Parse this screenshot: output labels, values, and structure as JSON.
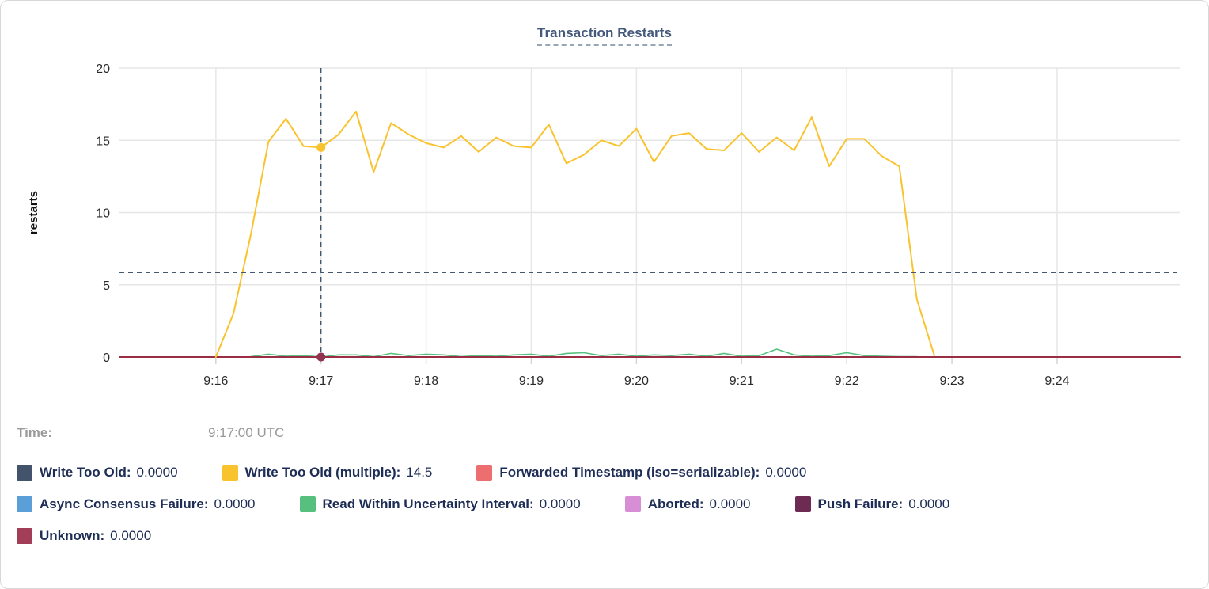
{
  "card": {
    "title": "Transaction Restarts"
  },
  "hover": {
    "label": "Time:",
    "value": "9:17:00 UTC"
  },
  "legend": {
    "rows": [
      [
        {
          "key": "write-too-old",
          "label": "Write Too Old:",
          "value": "0.0000",
          "color": "#43536c"
        },
        {
          "key": "write-too-old-multiple",
          "label": "Write Too Old (multiple):",
          "value": "14.5",
          "color": "#f9c32e"
        },
        {
          "key": "forwarded-timestamp",
          "label": "Forwarded Timestamp (iso=serializable):",
          "value": "0.0000",
          "color": "#ed6e6e"
        }
      ],
      [
        {
          "key": "async-consensus-failure",
          "label": "Async Consensus Failure:",
          "value": "0.0000",
          "color": "#5b9fd8"
        },
        {
          "key": "read-within-uncertainty-interval",
          "label": "Read Within Uncertainty Interval:",
          "value": "0.0000",
          "color": "#57c07f"
        },
        {
          "key": "aborted",
          "label": "Aborted:",
          "value": "0.0000",
          "color": "#d78ed5"
        },
        {
          "key": "push-failure",
          "label": "Push Failure:",
          "value": "0.0000",
          "color": "#6d2a52"
        }
      ],
      [
        {
          "key": "unknown",
          "label": "Unknown:",
          "value": "0.0000",
          "color": "#a23e55"
        }
      ]
    ]
  },
  "chart_data": {
    "type": "line",
    "title": "Transaction Restarts",
    "xlabel": "",
    "ylabel": "restarts",
    "ylim": [
      0,
      20
    ],
    "yticks": [
      0,
      5,
      10,
      15,
      20
    ],
    "x_base_time": "9:15:00",
    "x_domain_seconds": [
      5,
      610
    ],
    "xticks": [
      {
        "t": 60,
        "label": "9:16"
      },
      {
        "t": 120,
        "label": "9:17"
      },
      {
        "t": 180,
        "label": "9:18"
      },
      {
        "t": 240,
        "label": "9:19"
      },
      {
        "t": 300,
        "label": "9:20"
      },
      {
        "t": 360,
        "label": "9:21"
      },
      {
        "t": 420,
        "label": "9:22"
      },
      {
        "t": 480,
        "label": "9:23"
      },
      {
        "t": 540,
        "label": "9:24"
      }
    ],
    "grid": true,
    "legend_position": "bottom",
    "crosshair": {
      "t": 120,
      "time": "9:17:00 UTC",
      "hline_value": 5.85,
      "points": [
        {
          "series": "Write Too Old (multiple)",
          "value": 14.5,
          "color": "#f9c32e"
        },
        {
          "series": "Unknown",
          "value": 0,
          "color": "#8f3350"
        }
      ]
    },
    "series": [
      {
        "name": "Write Too Old",
        "key": "write-too-old",
        "color": "#43536c",
        "width": 1.5,
        "points": [
          [
            5,
            0
          ],
          [
            610,
            0
          ]
        ]
      },
      {
        "name": "Forwarded Timestamp (iso=serializable)",
        "key": "forwarded-timestamp",
        "color": "#ed6e6e",
        "width": 1.5,
        "points": [
          [
            5,
            0
          ],
          [
            610,
            0
          ]
        ]
      },
      {
        "name": "Async Consensus Failure",
        "key": "async-consensus-failure",
        "color": "#5b9fd8",
        "width": 1.5,
        "points": [
          [
            5,
            0
          ],
          [
            610,
            0
          ]
        ]
      },
      {
        "name": "Aborted",
        "key": "aborted",
        "color": "#d78ed5",
        "width": 1.5,
        "points": [
          [
            5,
            0
          ],
          [
            610,
            0
          ]
        ]
      },
      {
        "name": "Push Failure",
        "key": "push-failure",
        "color": "#6d2a52",
        "width": 1.5,
        "points": [
          [
            5,
            0
          ],
          [
            610,
            0
          ]
        ]
      },
      {
        "name": "Read Within Uncertainty Interval",
        "key": "read-within-uncertainty-interval",
        "color": "#57c07f",
        "width": 1.6,
        "points": [
          [
            80,
            0.02
          ],
          [
            90,
            0.2
          ],
          [
            100,
            0.05
          ],
          [
            110,
            0.1
          ],
          [
            120,
            0
          ],
          [
            130,
            0.15
          ],
          [
            140,
            0.15
          ],
          [
            150,
            0.02
          ],
          [
            160,
            0.25
          ],
          [
            170,
            0.1
          ],
          [
            180,
            0.2
          ],
          [
            190,
            0.15
          ],
          [
            200,
            0.02
          ],
          [
            210,
            0.1
          ],
          [
            220,
            0.05
          ],
          [
            230,
            0.15
          ],
          [
            240,
            0.2
          ],
          [
            250,
            0.05
          ],
          [
            260,
            0.25
          ],
          [
            270,
            0.3
          ],
          [
            280,
            0.1
          ],
          [
            290,
            0.2
          ],
          [
            300,
            0.05
          ],
          [
            310,
            0.15
          ],
          [
            320,
            0.1
          ],
          [
            330,
            0.2
          ],
          [
            340,
            0.05
          ],
          [
            350,
            0.25
          ],
          [
            360,
            0.05
          ],
          [
            370,
            0.1
          ],
          [
            380,
            0.55
          ],
          [
            390,
            0.15
          ],
          [
            400,
            0.05
          ],
          [
            410,
            0.1
          ],
          [
            420,
            0.3
          ],
          [
            430,
            0.1
          ],
          [
            440,
            0.05
          ],
          [
            450,
            0.02
          ],
          [
            460,
            0.02
          ]
        ]
      },
      {
        "name": "Unknown",
        "key": "unknown",
        "color": "#9b2e45",
        "width": 2,
        "points": [
          [
            5,
            0
          ],
          [
            610,
            0
          ]
        ]
      },
      {
        "name": "Write Too Old (multiple)",
        "key": "write-too-old-multiple",
        "color": "#f9c32e",
        "width": 2,
        "points": [
          [
            60,
            0
          ],
          [
            70,
            3
          ],
          [
            80,
            8.5
          ],
          [
            90,
            14.9
          ],
          [
            100,
            16.5
          ],
          [
            110,
            14.6
          ],
          [
            120,
            14.5
          ],
          [
            130,
            15.4
          ],
          [
            140,
            17
          ],
          [
            150,
            12.8
          ],
          [
            160,
            16.2
          ],
          [
            170,
            15.4
          ],
          [
            180,
            14.8
          ],
          [
            190,
            14.5
          ],
          [
            200,
            15.3
          ],
          [
            210,
            14.2
          ],
          [
            220,
            15.2
          ],
          [
            230,
            14.6
          ],
          [
            240,
            14.5
          ],
          [
            250,
            16.1
          ],
          [
            260,
            13.4
          ],
          [
            270,
            14
          ],
          [
            280,
            15
          ],
          [
            290,
            14.6
          ],
          [
            300,
            15.8
          ],
          [
            310,
            13.5
          ],
          [
            320,
            15.3
          ],
          [
            330,
            15.5
          ],
          [
            340,
            14.4
          ],
          [
            350,
            14.3
          ],
          [
            360,
            15.5
          ],
          [
            370,
            14.2
          ],
          [
            380,
            15.2
          ],
          [
            390,
            14.3
          ],
          [
            400,
            16.6
          ],
          [
            410,
            13.2
          ],
          [
            420,
            15.1
          ],
          [
            430,
            15.1
          ],
          [
            440,
            13.9
          ],
          [
            450,
            13.2
          ],
          [
            460,
            4
          ],
          [
            470,
            0.1
          ]
        ]
      }
    ]
  }
}
